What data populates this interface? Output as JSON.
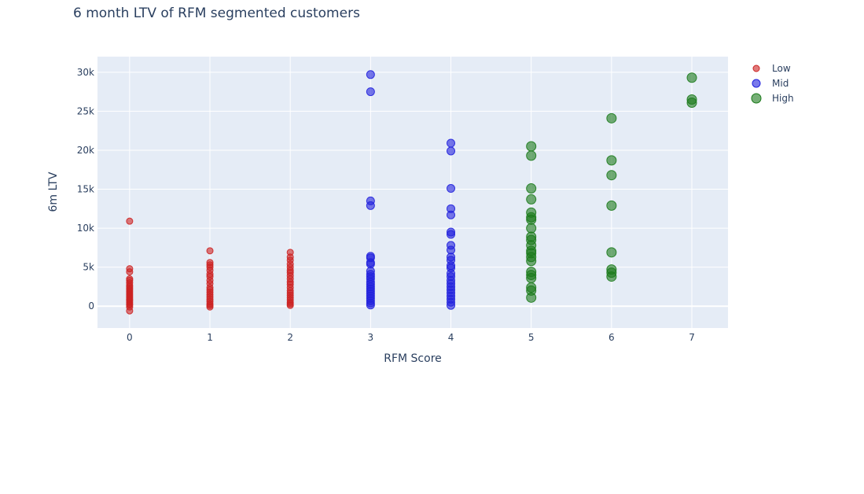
{
  "chart_data": {
    "type": "scatter",
    "title": "6 month LTV of RFM segmented customers",
    "xlabel": "RFM Score",
    "ylabel": "6m LTV",
    "xlim": [
      -0.4,
      7.45
    ],
    "ylim": [
      -2800,
      32000
    ],
    "x_ticks": [
      0,
      1,
      2,
      3,
      4,
      5,
      6,
      7
    ],
    "y_ticks": [
      0,
      5000,
      10000,
      15000,
      20000,
      25000,
      30000
    ],
    "y_tick_labels": [
      "0",
      "5k",
      "10k",
      "15k",
      "20k",
      "25k",
      "30k"
    ],
    "grid": true,
    "legend": "top-right",
    "series": [
      {
        "name": "Low",
        "color": "#cc2222",
        "marker_size": 8,
        "points": [
          [
            0,
            10900
          ],
          [
            0,
            4800
          ],
          [
            0,
            4400
          ],
          [
            0,
            3500
          ],
          [
            0,
            3300
          ],
          [
            0,
            3000
          ],
          [
            0,
            2700
          ],
          [
            0,
            2500
          ],
          [
            0,
            2300
          ],
          [
            0,
            2100
          ],
          [
            0,
            1900
          ],
          [
            0,
            1700
          ],
          [
            0,
            1500
          ],
          [
            0,
            1300
          ],
          [
            0,
            1100
          ],
          [
            0,
            900
          ],
          [
            0,
            700
          ],
          [
            0,
            500
          ],
          [
            0,
            300
          ],
          [
            0,
            150
          ],
          [
            0,
            -100
          ],
          [
            0,
            -600
          ],
          [
            1,
            7100
          ],
          [
            1,
            5600
          ],
          [
            1,
            5300
          ],
          [
            1,
            5000
          ],
          [
            1,
            4600
          ],
          [
            1,
            4100
          ],
          [
            1,
            3800
          ],
          [
            1,
            3300
          ],
          [
            1,
            2900
          ],
          [
            1,
            2400
          ],
          [
            1,
            2100
          ],
          [
            1,
            1800
          ],
          [
            1,
            1500
          ],
          [
            1,
            1200
          ],
          [
            1,
            900
          ],
          [
            1,
            600
          ],
          [
            1,
            300
          ],
          [
            1,
            100
          ],
          [
            1,
            -100
          ],
          [
            2,
            6900
          ],
          [
            2,
            6300
          ],
          [
            2,
            5900
          ],
          [
            2,
            5400
          ],
          [
            2,
            5000
          ],
          [
            2,
            4600
          ],
          [
            2,
            4300
          ],
          [
            2,
            3900
          ],
          [
            2,
            3500
          ],
          [
            2,
            3100
          ],
          [
            2,
            2800
          ],
          [
            2,
            2400
          ],
          [
            2,
            2000
          ],
          [
            2,
            1700
          ],
          [
            2,
            1400
          ],
          [
            2,
            1100
          ],
          [
            2,
            800
          ],
          [
            2,
            500
          ],
          [
            2,
            300
          ],
          [
            2,
            100
          ]
        ]
      },
      {
        "name": "Mid",
        "color": "#2222dd",
        "marker_size": 10,
        "points": [
          [
            3,
            29700
          ],
          [
            3,
            27500
          ],
          [
            3,
            13500
          ],
          [
            3,
            12900
          ],
          [
            3,
            6400
          ],
          [
            3,
            6200
          ],
          [
            3,
            5600
          ],
          [
            3,
            5400
          ],
          [
            3,
            4500
          ],
          [
            3,
            4100
          ],
          [
            3,
            3800
          ],
          [
            3,
            3500
          ],
          [
            3,
            3100
          ],
          [
            3,
            2800
          ],
          [
            3,
            2500
          ],
          [
            3,
            2200
          ],
          [
            3,
            1900
          ],
          [
            3,
            1600
          ],
          [
            3,
            1300
          ],
          [
            3,
            1000
          ],
          [
            3,
            700
          ],
          [
            3,
            400
          ],
          [
            3,
            150
          ],
          [
            4,
            20900
          ],
          [
            4,
            19900
          ],
          [
            4,
            15100
          ],
          [
            4,
            12500
          ],
          [
            4,
            11700
          ],
          [
            4,
            9500
          ],
          [
            4,
            9200
          ],
          [
            4,
            7800
          ],
          [
            4,
            7200
          ],
          [
            4,
            6300
          ],
          [
            4,
            5900
          ],
          [
            4,
            5200
          ],
          [
            4,
            4900
          ],
          [
            4,
            4200
          ],
          [
            4,
            3800
          ],
          [
            4,
            3300
          ],
          [
            4,
            2900
          ],
          [
            4,
            2500
          ],
          [
            4,
            2100
          ],
          [
            4,
            1700
          ],
          [
            4,
            1300
          ],
          [
            4,
            900
          ],
          [
            4,
            500
          ],
          [
            4,
            100
          ]
        ]
      },
      {
        "name": "High",
        "color": "#1a7a1a",
        "marker_size": 12,
        "points": [
          [
            5,
            20500
          ],
          [
            5,
            19300
          ],
          [
            5,
            15100
          ],
          [
            5,
            13700
          ],
          [
            5,
            12000
          ],
          [
            5,
            11400
          ],
          [
            5,
            11100
          ],
          [
            5,
            10000
          ],
          [
            5,
            8900
          ],
          [
            5,
            8500
          ],
          [
            5,
            7800
          ],
          [
            5,
            7100
          ],
          [
            5,
            6800
          ],
          [
            5,
            6300
          ],
          [
            5,
            5800
          ],
          [
            5,
            4400
          ],
          [
            5,
            4000
          ],
          [
            5,
            3600
          ],
          [
            5,
            2400
          ],
          [
            5,
            2000
          ],
          [
            5,
            1100
          ],
          [
            6,
            24100
          ],
          [
            6,
            18700
          ],
          [
            6,
            16800
          ],
          [
            6,
            12900
          ],
          [
            6,
            6900
          ],
          [
            6,
            4700
          ],
          [
            6,
            4300
          ],
          [
            6,
            3800
          ],
          [
            7,
            29300
          ],
          [
            7,
            26500
          ],
          [
            7,
            26100
          ]
        ]
      }
    ]
  }
}
